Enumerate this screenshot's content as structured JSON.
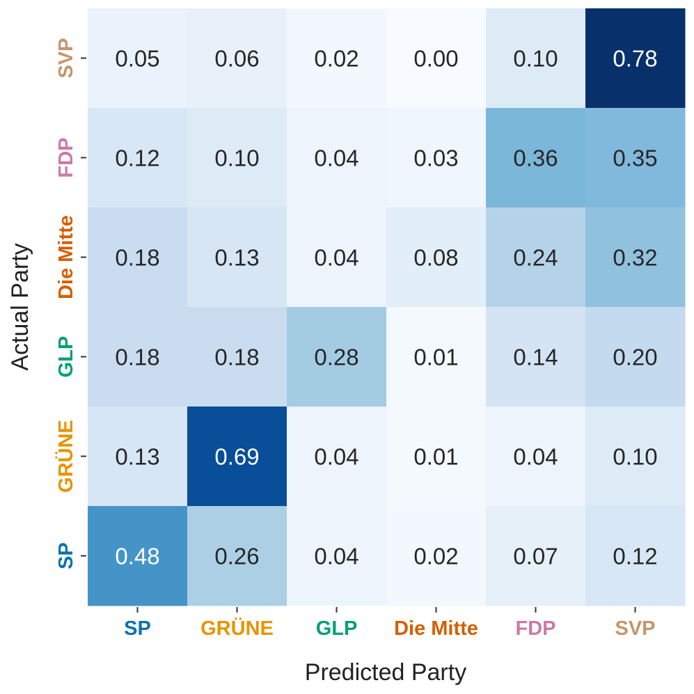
{
  "chart_data": {
    "type": "heatmap",
    "title": "",
    "xlabel": "Predicted Party",
    "ylabel": "Actual Party",
    "x_categories": [
      "SP",
      "GRÜNE",
      "GLP",
      "Die Mitte",
      "FDP",
      "SVP"
    ],
    "y_categories_top_to_bottom": [
      "SVP",
      "FDP",
      "Die Mitte",
      "GLP",
      "GRÜNE",
      "SP"
    ],
    "values": [
      [
        0.05,
        0.06,
        0.02,
        0.0,
        0.1,
        0.78
      ],
      [
        0.12,
        0.1,
        0.04,
        0.03,
        0.36,
        0.35
      ],
      [
        0.18,
        0.13,
        0.04,
        0.08,
        0.24,
        0.32
      ],
      [
        0.18,
        0.18,
        0.28,
        0.01,
        0.14,
        0.2
      ],
      [
        0.13,
        0.69,
        0.04,
        0.01,
        0.04,
        0.1
      ],
      [
        0.48,
        0.26,
        0.04,
        0.02,
        0.07,
        0.12
      ]
    ],
    "value_range": [
      0,
      0.78
    ],
    "colormap": "Blues",
    "category_colors": {
      "SP": "#0a72b1",
      "GRÜNE": "#e69400",
      "GLP": "#00a075",
      "Die Mitte": "#d55e00",
      "FDP": "#cc79a7",
      "SVP": "#c6956b"
    }
  }
}
